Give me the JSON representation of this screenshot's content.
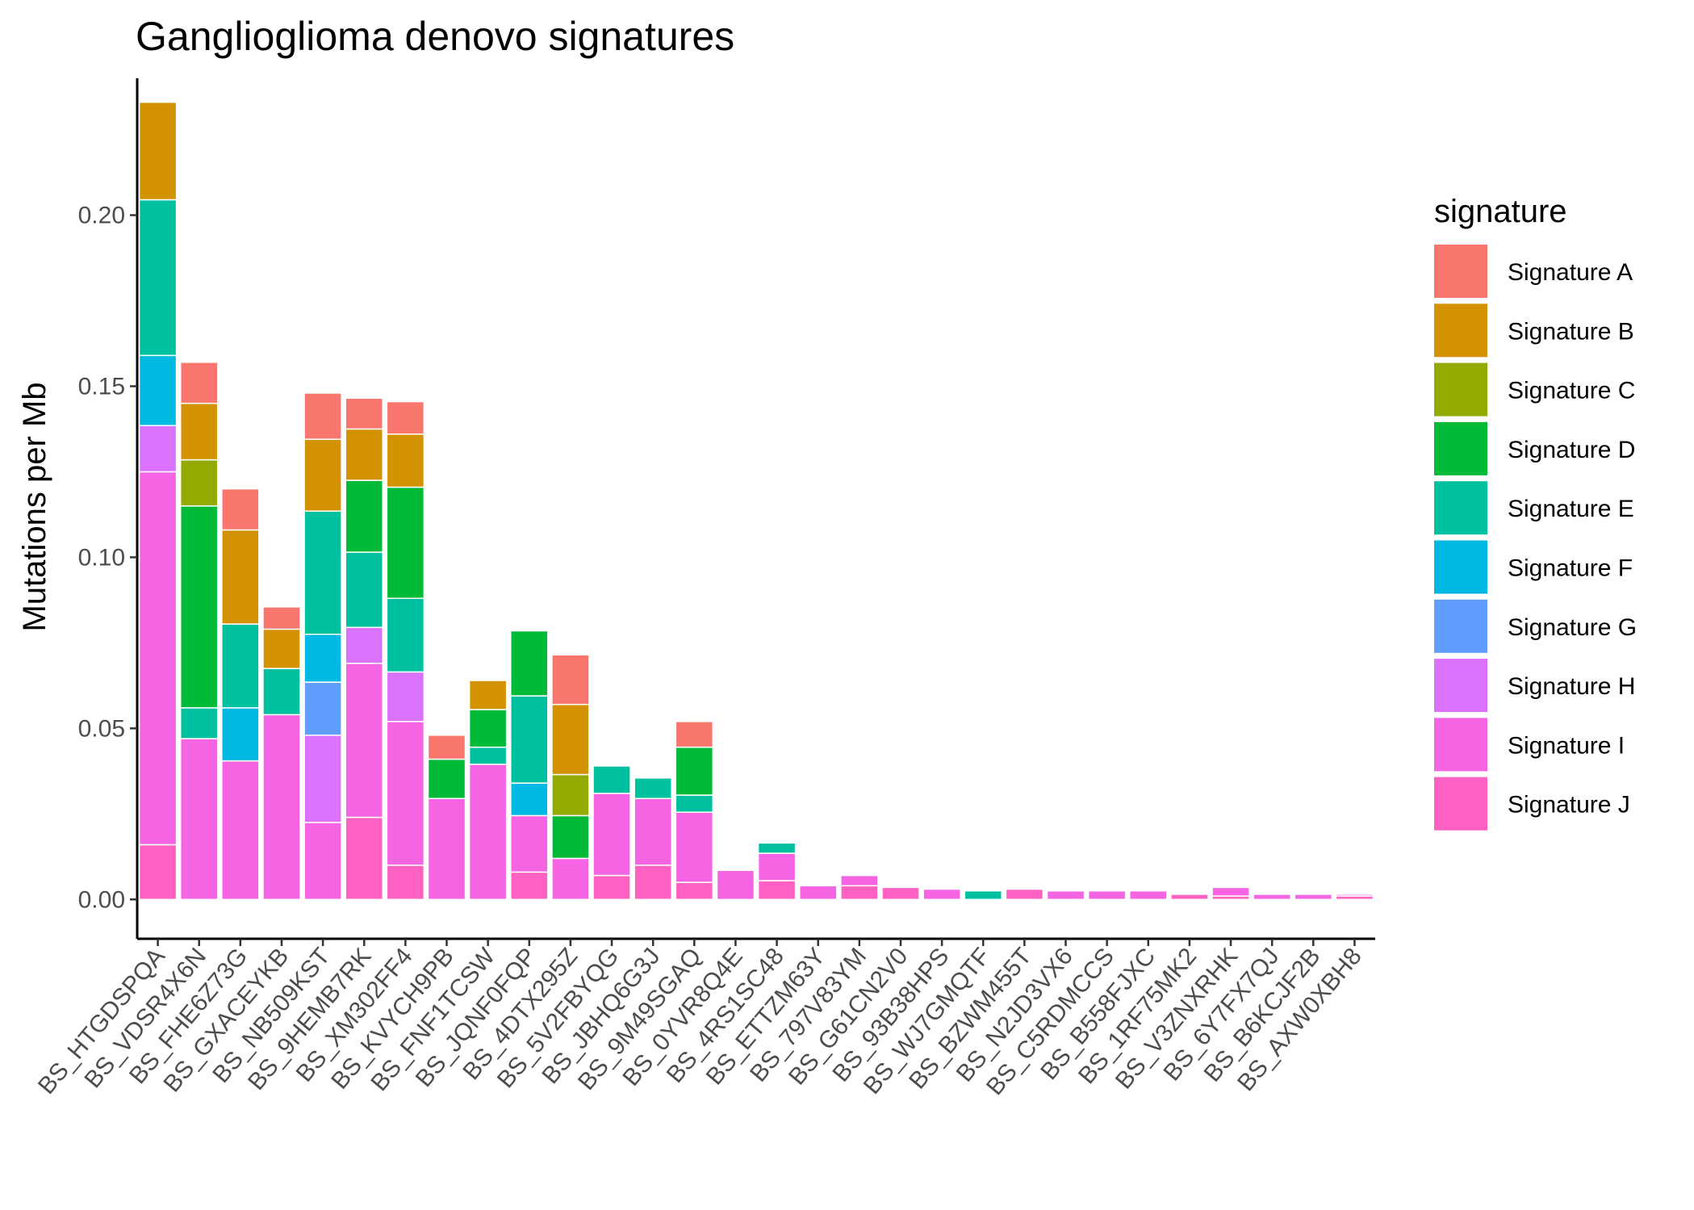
{
  "chart_data": {
    "type": "bar",
    "stacked": true,
    "title": "Ganglioglioma denovo signatures",
    "xlabel": "",
    "ylabel": "Mutations per Mb",
    "ylim": [
      -0.0115,
      0.24
    ],
    "yticks": [
      "0.00",
      "0.05",
      "0.10",
      "0.15",
      "0.20"
    ],
    "ytick_values": [
      0,
      0.05,
      0.1,
      0.15,
      0.2
    ],
    "legend_title": "signature",
    "legend_position": "right",
    "grid": false,
    "colors": [
      "#f8766d",
      "#d39200",
      "#93aa00",
      "#00ba38",
      "#00c19f",
      "#00b9e3",
      "#619cff",
      "#db72fb",
      "#f564e3",
      "#ff61c3"
    ],
    "categories": [
      "BS_HTGDSPQA",
      "BS_VDSR4X6N",
      "BS_FHE6Z73G",
      "BS_GXACEYKB",
      "BS_NB509KST",
      "BS_9HEMB7RK",
      "BS_XM302FF4",
      "BS_KVYCH9PB",
      "BS_FNF1TCSW",
      "BS_JQNF0FQP",
      "BS_4DTX295Z",
      "BS_5V2FBYQG",
      "BS_JBHQ6G3J",
      "BS_9M49SGAQ",
      "BS_0YVR8Q4E",
      "BS_4RS1SC48",
      "BS_ETTZM63Y",
      "BS_797V83YM",
      "BS_G61CN2V0",
      "BS_93B38HPS",
      "BS_WJ7GMQTF",
      "BS_BZWM455T",
      "BS_N2JD3VX6",
      "BS_C5RDMCCS",
      "BS_B558FJXC",
      "BS_1RF75MK2",
      "BS_V3ZNXRHK",
      "BS_6Y7FX7QJ",
      "BS_B6KCJF2B",
      "BS_AXW0XBH8"
    ],
    "series": [
      {
        "name": "Signature J",
        "values": [
          0.016,
          0,
          0,
          0,
          0,
          0.024,
          0.01,
          0,
          0,
          0.008,
          0,
          0.007,
          0.01,
          0.005,
          0,
          0.0055,
          0,
          0.004,
          0.0035,
          0,
          0,
          0.003,
          0,
          0,
          0,
          0.0015,
          0.001,
          0,
          0,
          0.001
        ]
      },
      {
        "name": "Signature I",
        "values": [
          0.109,
          0.047,
          0.0405,
          0.054,
          0.0225,
          0.045,
          0.042,
          0.0295,
          0.0395,
          0.0165,
          0.012,
          0.024,
          0.0195,
          0.0205,
          0.0085,
          0.008,
          0.004,
          0.003,
          0,
          0.003,
          0,
          0,
          0.0025,
          0.0025,
          0.0025,
          0,
          0.0025,
          0.0015,
          0.0015,
          0.0005
        ]
      },
      {
        "name": "Signature H",
        "values": [
          0.0135,
          0,
          0,
          0,
          0.0255,
          0.0105,
          0.0145,
          0,
          0,
          0,
          0,
          0,
          0,
          0,
          0,
          0,
          0,
          0,
          0,
          0,
          0,
          0,
          0,
          0,
          0,
          0,
          0,
          0,
          0,
          0
        ]
      },
      {
        "name": "Signature G",
        "values": [
          0,
          0,
          0,
          0,
          0.0155,
          0,
          0,
          0,
          0,
          0,
          0,
          0,
          0,
          0,
          0,
          0,
          0,
          0,
          0,
          0,
          0,
          0,
          0,
          0,
          0,
          0,
          0,
          0,
          0,
          0
        ]
      },
      {
        "name": "Signature F",
        "values": [
          0.0205,
          0,
          0.0155,
          0,
          0.014,
          0,
          0,
          0,
          0,
          0.0095,
          0,
          0,
          0,
          0,
          0,
          0,
          0,
          0,
          0,
          0,
          0,
          0,
          0,
          0,
          0,
          0,
          0,
          0,
          0,
          0
        ]
      },
      {
        "name": "Signature E",
        "values": [
          0.0455,
          0.009,
          0.0245,
          0.0135,
          0.036,
          0.022,
          0.0215,
          0,
          0.005,
          0.0255,
          0,
          0.008,
          0.006,
          0.005,
          0,
          0.003,
          0,
          0,
          0,
          0,
          0.0025,
          0,
          0,
          0,
          0,
          0,
          0,
          0,
          0,
          0
        ]
      },
      {
        "name": "Signature D",
        "values": [
          0,
          0.059,
          0,
          0,
          0,
          0.021,
          0.0325,
          0.0115,
          0.011,
          0.019,
          0.0125,
          0,
          0,
          0.014,
          0,
          0,
          0,
          0,
          0,
          0,
          0,
          0,
          0,
          0,
          0,
          0,
          0,
          0,
          0,
          0
        ]
      },
      {
        "name": "Signature C",
        "values": [
          0,
          0.0135,
          0,
          0,
          0,
          0,
          0,
          0,
          0,
          0,
          0.012,
          0,
          0,
          0,
          0,
          0,
          0,
          0,
          0,
          0,
          0,
          0,
          0,
          0,
          0,
          0,
          0,
          0,
          0,
          0
        ]
      },
      {
        "name": "Signature B",
        "values": [
          0.0285,
          0.0165,
          0.0275,
          0.0115,
          0.021,
          0.015,
          0.0155,
          0,
          0.0085,
          0,
          0.0205,
          0,
          0,
          0,
          0,
          0,
          0,
          0,
          0,
          0,
          0,
          0,
          0,
          0,
          0,
          0,
          0,
          0,
          0,
          0
        ]
      },
      {
        "name": "Signature A",
        "values": [
          0,
          0.012,
          0.012,
          0.0065,
          0.0135,
          0.009,
          0.0095,
          0.007,
          0,
          0,
          0.0145,
          0,
          0,
          0.0075,
          0,
          0,
          0,
          0,
          0,
          0,
          0,
          0,
          0,
          0,
          0,
          0,
          0,
          0,
          0,
          0
        ]
      }
    ],
    "legend_entries": [
      "Signature A",
      "Signature B",
      "Signature C",
      "Signature D",
      "Signature E",
      "Signature F",
      "Signature G",
      "Signature H",
      "Signature I",
      "Signature J"
    ]
  }
}
